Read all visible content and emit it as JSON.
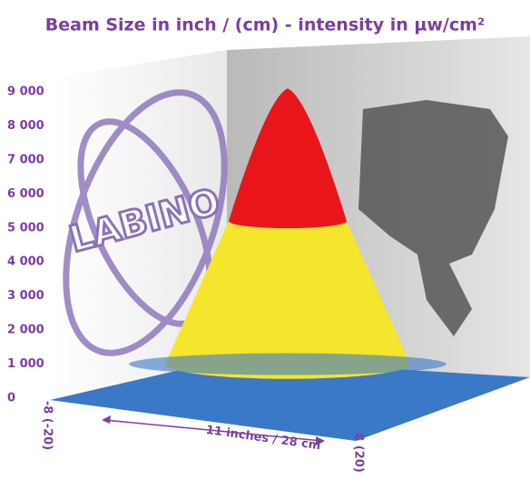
{
  "chart_data": {
    "type": "cone",
    "title": "Beam Size in inch / (cm) - intensity in µw/cm²",
    "ylim": [
      0,
      9000
    ],
    "yticks": [
      {
        "value": 0,
        "label": "0"
      },
      {
        "value": 1000,
        "label": "1 000"
      },
      {
        "value": 2000,
        "label": "2 000"
      },
      {
        "value": 3000,
        "label": "3 000"
      },
      {
        "value": 4000,
        "label": "4 000"
      },
      {
        "value": 5000,
        "label": "5 000"
      },
      {
        "value": 6000,
        "label": "6 000"
      },
      {
        "value": 7000,
        "label": "7 000"
      },
      {
        "value": 8000,
        "label": "8 000"
      },
      {
        "value": 9000,
        "label": "9 000"
      }
    ],
    "x_start_label": "-8 (-20)",
    "x_end_label": "8 (20)",
    "x_span_label": "11 inches / 28 cm",
    "levels": [
      1000,
      5200,
      9100
    ],
    "colors": [
      "#3a78c8",
      "#f4e62c",
      "#e8161b"
    ],
    "logo": "LABINO"
  }
}
